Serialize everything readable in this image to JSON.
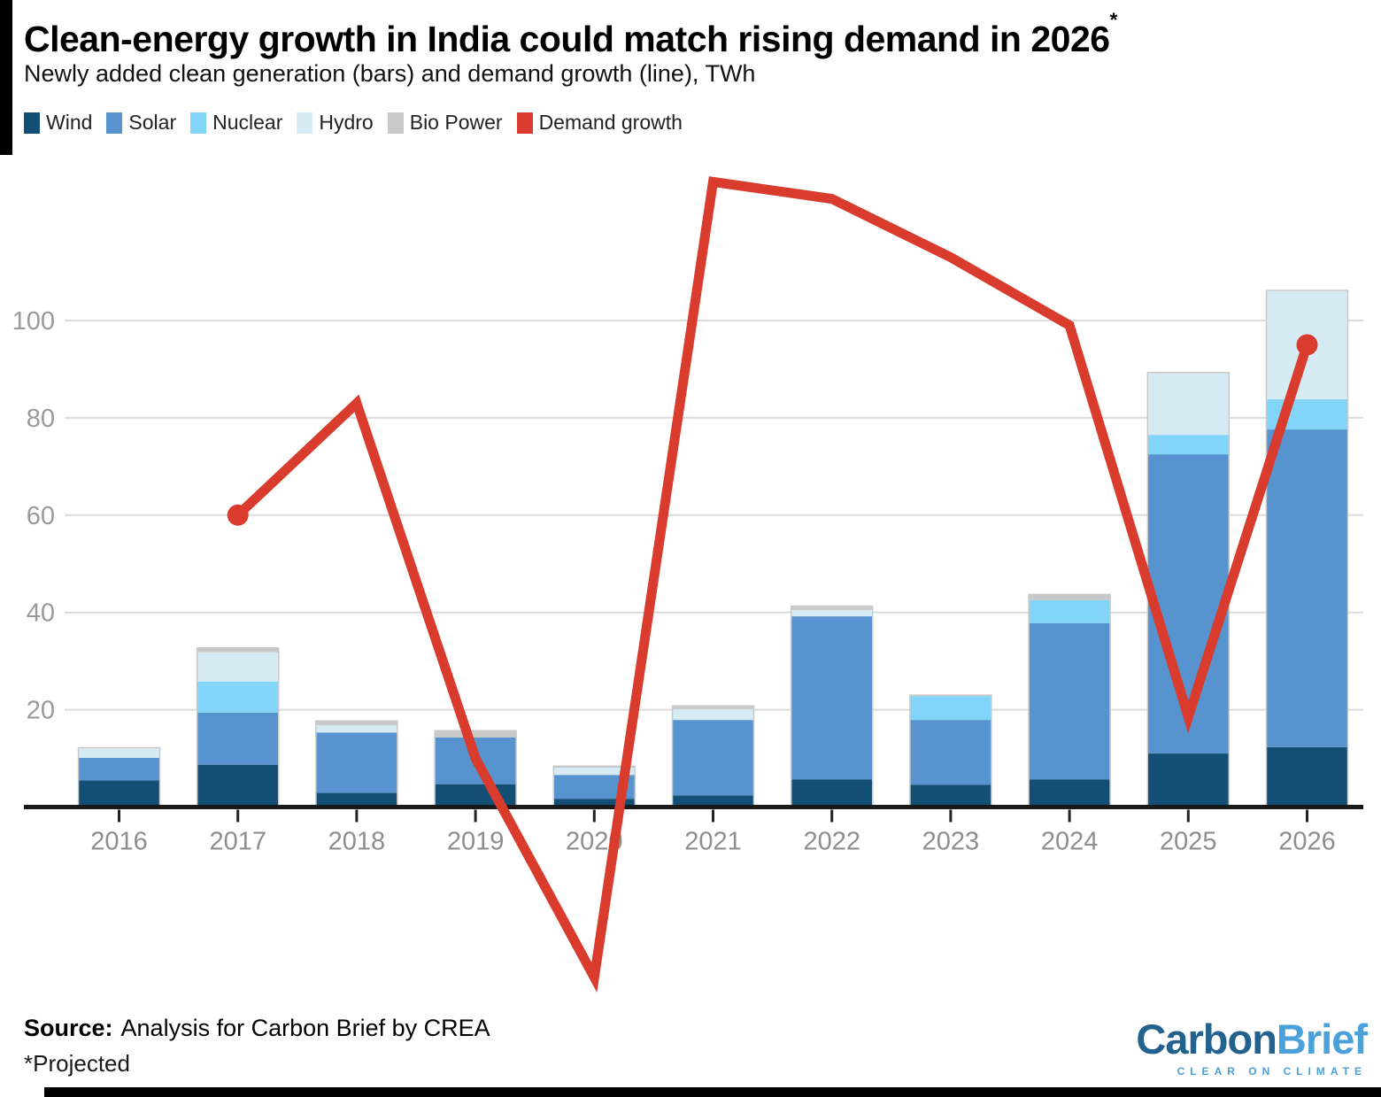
{
  "header": {
    "title": "Clean-energy growth in India could match rising demand in 2026",
    "title_note": "*",
    "subtitle": "Newly added clean generation (bars) and demand growth (line), TWh"
  },
  "chart_data": {
    "type": "bar",
    "title": "Clean-energy growth in India could match rising demand in 2026*",
    "subtitle": "Newly added clean generation (bars) and demand growth (line), TWh",
    "unit": "TWh",
    "categories": [
      "2016",
      "2017",
      "2018",
      "2019",
      "2020",
      "2021",
      "2022",
      "2023",
      "2024",
      "2025",
      "2026"
    ],
    "series": [
      {
        "name": "Wind",
        "color": "#134e74",
        "values": [
          5.5,
          8.7,
          2.9,
          4.7,
          1.7,
          2.4,
          5.7,
          4.6,
          5.7,
          11.0,
          12.3
        ]
      },
      {
        "name": "Solar",
        "color": "#5793ce",
        "values": [
          4.6,
          10.7,
          12.4,
          9.6,
          4.9,
          15.5,
          33.5,
          13.3,
          32.1,
          61.5,
          65.3
        ]
      },
      {
        "name": "Nuclear",
        "color": "#82d5f8",
        "values": [
          0,
          6.4,
          0,
          0,
          0,
          0,
          0,
          4.9,
          4.7,
          4.0,
          6.2
        ]
      },
      {
        "name": "Hydro",
        "color": "#d6ebf4",
        "values": [
          2.1,
          6.0,
          1.5,
          0,
          1.5,
          2.2,
          1.3,
          0,
          0,
          12.8,
          22.4
        ]
      },
      {
        "name": "Bio Power",
        "color": "#c9c9c9",
        "values": [
          0,
          0.9,
          0.9,
          1.4,
          0.3,
          0.7,
          0.8,
          0.2,
          1.2,
          0,
          0
        ]
      }
    ],
    "line": {
      "name": "Demand growth",
      "color": "#d93b2d",
      "values": [
        null,
        60,
        83,
        10,
        -35,
        128.5,
        125,
        113,
        99,
        18.5,
        95
      ],
      "dot_years": [
        "2017",
        "2026"
      ]
    },
    "yticks": [
      20,
      40,
      60,
      80,
      100
    ],
    "ylim": [
      -40,
      130
    ],
    "grid": "horizontal",
    "legend_position": "top",
    "axis_color": "#1a1a1a",
    "grid_color": "#dcdcdc",
    "tick_label_color": "#9a9a9a",
    "bar_outline_color": "#c9c9c9"
  },
  "footer": {
    "source_label": "Source:",
    "source_text": "Analysis for Carbon Brief by CREA",
    "footnote": "*Projected"
  },
  "logo": {
    "part1": "Carbon",
    "part2": "Brief",
    "tagline": "CLEAR ON CLIMATE",
    "part1_color": "#23628f",
    "part2_color": "#4aa0d8",
    "tagline_color": "#4aa0d8"
  }
}
